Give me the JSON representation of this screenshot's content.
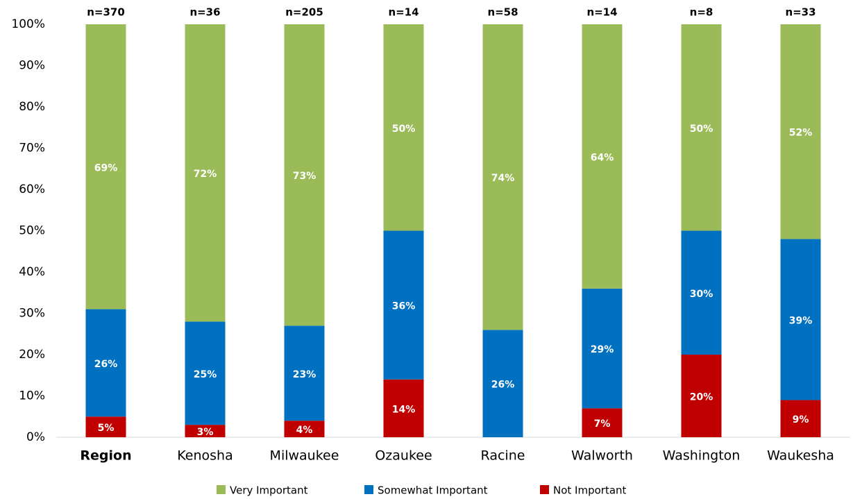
{
  "chart_data": {
    "type": "stacked_bar",
    "categories": [
      "Region",
      "Kenosha",
      "Milwaukee",
      "Ozaukee",
      "Racine",
      "Walworth",
      "Washington",
      "Waukesha"
    ],
    "annotations": [
      "n=370",
      "n=36",
      "n=205",
      "n=14",
      "n=58",
      "n=14",
      "n=8",
      "n=33"
    ],
    "series": [
      {
        "name": "Not Important",
        "color": "#c00000",
        "values": [
          5,
          3,
          4,
          14,
          null,
          7,
          20,
          9
        ],
        "value_labels": [
          "5%",
          "3%",
          "4%",
          "14%",
          null,
          "7%",
          "20%",
          "9%"
        ]
      },
      {
        "name": "Somewhat Important",
        "color": "#0070c0",
        "values": [
          26,
          25,
          23,
          36,
          26,
          29,
          30,
          39
        ],
        "value_labels": [
          "26%",
          "25%",
          "23%",
          "36%",
          "26%",
          "29%",
          "30%",
          "39%"
        ]
      },
      {
        "name": "Very Important",
        "color": "#9bbb59",
        "values": [
          69,
          72,
          73,
          50,
          74,
          64,
          50,
          52
        ],
        "value_labels": [
          "69%",
          "72%",
          "73%",
          "50%",
          "74%",
          "64%",
          "50%",
          "52%"
        ]
      }
    ],
    "legend_order": [
      2,
      1,
      0
    ],
    "ylim": [
      0,
      100
    ],
    "yticks": [
      {
        "value": 0,
        "label": "0%"
      },
      {
        "value": 10,
        "label": "10%"
      },
      {
        "value": 20,
        "label": "20%"
      },
      {
        "value": 30,
        "label": "30%"
      },
      {
        "value": 40,
        "label": "40%"
      },
      {
        "value": 50,
        "label": "50%"
      },
      {
        "value": 60,
        "label": "60%"
      },
      {
        "value": 70,
        "label": "70%"
      },
      {
        "value": 80,
        "label": "80%"
      },
      {
        "value": 90,
        "label": "90%"
      },
      {
        "value": 100,
        "label": "100%"
      }
    ],
    "grid": false,
    "legend": "bottom"
  }
}
